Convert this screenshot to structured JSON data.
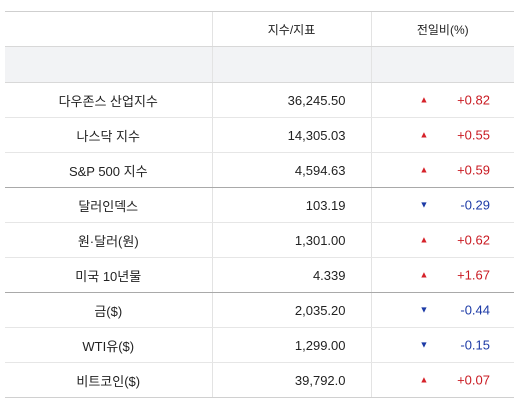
{
  "headers": {
    "name": "",
    "value": "지수/지표",
    "change": "전일비(%)"
  },
  "colors": {
    "up": "#d6222a",
    "down": "#1c3aa6",
    "subheader_bg": "#f2f3f5"
  },
  "rows": [
    {
      "name": "다우존스 산업지수",
      "value": "36,245.50",
      "change": "+0.82",
      "direction": "up",
      "icon": "triangle-up-icon"
    },
    {
      "name": "나스닥 지수",
      "value": "14,305.03",
      "change": "+0.55",
      "direction": "up",
      "icon": "triangle-up-icon"
    },
    {
      "name": "S&P 500 지수",
      "value": "4,594.63",
      "change": "+0.59",
      "direction": "up",
      "icon": "triangle-up-icon"
    },
    {
      "name": "달러인덱스",
      "value": "103.19",
      "change": "-0.29",
      "direction": "down",
      "icon": "triangle-down-icon"
    },
    {
      "name": "원·달러(원)",
      "value": "1,301.00",
      "change": "+0.62",
      "direction": "up",
      "icon": "triangle-up-icon"
    },
    {
      "name": "미국 10년물",
      "value": "4.339",
      "change": "+1.67",
      "direction": "up",
      "icon": "triangle-up-icon"
    },
    {
      "name": "금($)",
      "value": "2,035.20",
      "change": "-0.44",
      "direction": "down",
      "icon": "triangle-down-icon"
    },
    {
      "name": "WTI유($)",
      "value": "1,299.00",
      "change": "-0.15",
      "direction": "down",
      "icon": "triangle-down-icon"
    },
    {
      "name": "비트코인($)",
      "value": "39,792.0",
      "change": "+0.07",
      "direction": "up",
      "icon": "triangle-up-icon"
    }
  ]
}
